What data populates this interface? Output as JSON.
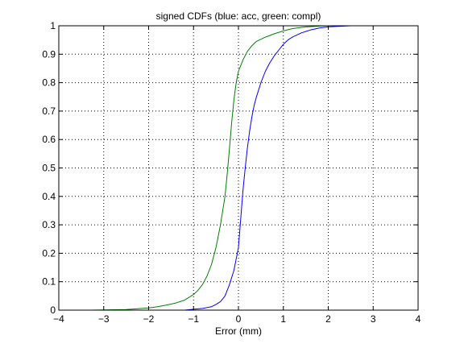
{
  "chart_data": {
    "type": "line",
    "title": "signed CDFs (blue: acc, green: compl)",
    "xlabel": "Error (mm)",
    "ylabel": "",
    "xlim": [
      -4,
      4
    ],
    "ylim": [
      0,
      1
    ],
    "xticks": [
      -4,
      -3,
      -2,
      -1,
      0,
      1,
      2,
      3,
      4
    ],
    "yticks": [
      0,
      0.1,
      0.2,
      0.3,
      0.4,
      0.5,
      0.6,
      0.7,
      0.8,
      0.9,
      1
    ],
    "xtick_labels": [
      "−4",
      "−3",
      "−2",
      "−1",
      "0",
      "1",
      "2",
      "3",
      "4"
    ],
    "ytick_labels": [
      "0",
      "0.1",
      "0.2",
      "0.3",
      "0.4",
      "0.5",
      "0.6",
      "0.7",
      "0.8",
      "0.9",
      "1"
    ],
    "grid": true,
    "grid_style": "dotted",
    "series": [
      {
        "color": "#0000ff",
        "x": [
          -1.5,
          -1.2,
          -1.0,
          -0.8,
          -0.6,
          -0.5,
          -0.4,
          -0.3,
          -0.2,
          -0.1,
          0.0,
          0.05,
          0.1,
          0.15,
          0.2,
          0.25,
          0.3,
          0.35,
          0.4,
          0.5,
          0.6,
          0.7,
          0.8,
          0.9,
          1.0,
          1.1,
          1.2,
          1.4,
          1.6,
          1.8,
          2.0,
          2.2,
          2.5,
          3.0
        ],
        "y": [
          0.0,
          0.0,
          0.003,
          0.006,
          0.012,
          0.02,
          0.03,
          0.05,
          0.09,
          0.14,
          0.22,
          0.32,
          0.42,
          0.5,
          0.57,
          0.63,
          0.68,
          0.72,
          0.75,
          0.8,
          0.84,
          0.87,
          0.895,
          0.915,
          0.935,
          0.95,
          0.96,
          0.975,
          0.985,
          0.992,
          0.996,
          0.998,
          1.0,
          1.0
        ]
      },
      {
        "color": "#008000",
        "x": [
          -3.3,
          -2.5,
          -2.0,
          -1.8,
          -1.6,
          -1.4,
          -1.2,
          -1.0,
          -0.9,
          -0.8,
          -0.7,
          -0.6,
          -0.5,
          -0.4,
          -0.3,
          -0.25,
          -0.2,
          -0.15,
          -0.1,
          -0.05,
          0.0,
          0.1,
          0.2,
          0.3,
          0.4,
          0.6,
          0.8,
          1.0,
          1.2,
          1.5,
          1.8,
          2.0
        ],
        "y": [
          0.0,
          0.002,
          0.008,
          0.012,
          0.018,
          0.025,
          0.035,
          0.055,
          0.07,
          0.09,
          0.12,
          0.16,
          0.22,
          0.3,
          0.4,
          0.48,
          0.57,
          0.66,
          0.74,
          0.8,
          0.84,
          0.88,
          0.91,
          0.93,
          0.945,
          0.96,
          0.972,
          0.982,
          0.99,
          0.996,
          0.999,
          1.0
        ]
      }
    ]
  }
}
